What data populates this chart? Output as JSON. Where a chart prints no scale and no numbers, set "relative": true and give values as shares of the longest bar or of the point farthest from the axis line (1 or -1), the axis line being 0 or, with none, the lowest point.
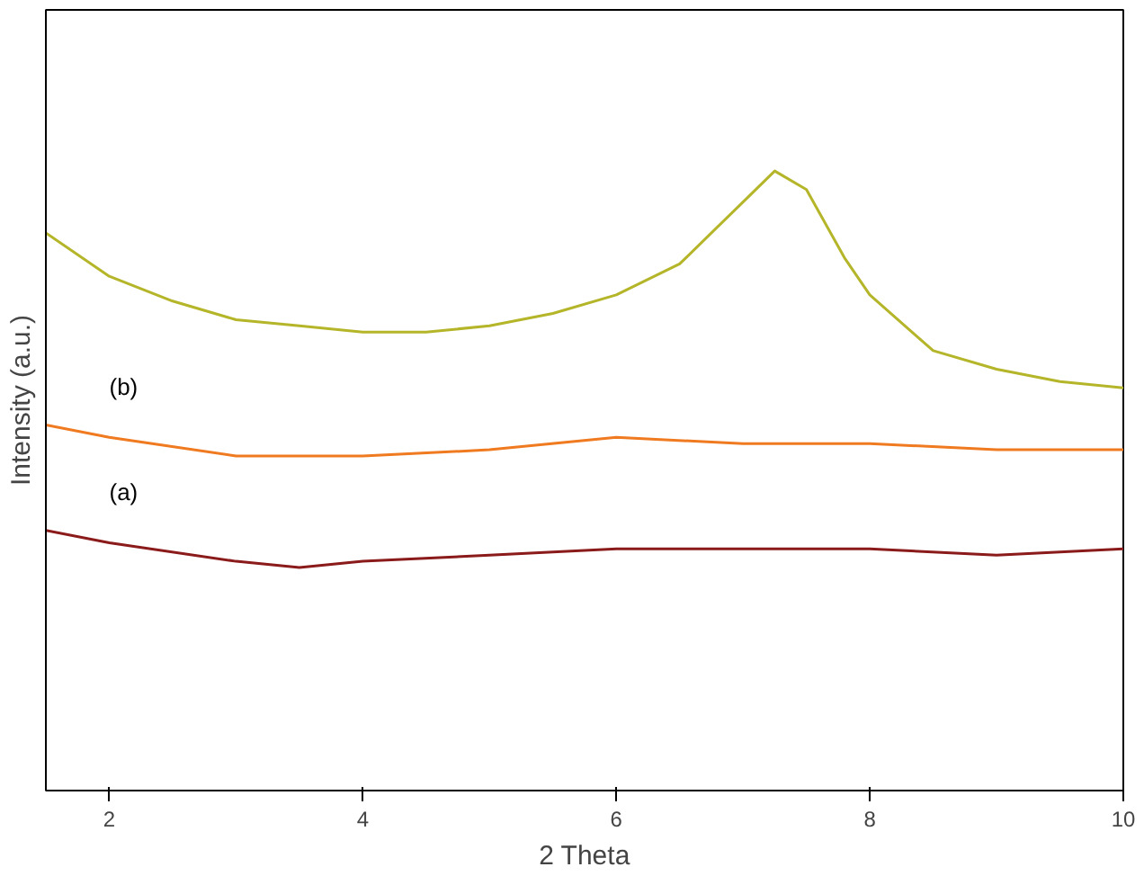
{
  "chart_data": {
    "type": "line",
    "xlabel": "2 Theta",
    "ylabel": "Intensity (a.u.)",
    "relative": true,
    "xlim": [
      1.5,
      10
    ],
    "xticks": [
      2,
      4,
      6,
      8,
      10
    ],
    "grid": false,
    "legend": false,
    "marker": "none",
    "line_style": "solid",
    "series": [
      {
        "color": "#b5b52a",
        "x": [
          1.5,
          2,
          2.5,
          3,
          3.5,
          4,
          4.5,
          5,
          5.5,
          6,
          6.5,
          7,
          7.25,
          7.5,
          7.8,
          8,
          8.5,
          9,
          9.5,
          10
        ],
        "values": [
          0.9,
          0.83,
          0.79,
          0.76,
          0.75,
          0.74,
          0.74,
          0.75,
          0.77,
          0.8,
          0.85,
          0.95,
          1,
          0.97,
          0.86,
          0.8,
          0.71,
          0.68,
          0.66,
          0.65
        ]
      },
      {
        "name": "(b)",
        "color": "#f07a20",
        "x": [
          1.5,
          2,
          3,
          4,
          5,
          6,
          7,
          8,
          9,
          10
        ],
        "values": [
          0.59,
          0.57,
          0.54,
          0.54,
          0.55,
          0.57,
          0.56,
          0.56,
          0.55,
          0.55
        ]
      },
      {
        "name": "(a)",
        "color": "#8b1a1a",
        "x": [
          1.5,
          2,
          3,
          3.5,
          4,
          5,
          6,
          7,
          8,
          9,
          10
        ],
        "values": [
          0.42,
          0.4,
          0.37,
          0.36,
          0.37,
          0.38,
          0.39,
          0.39,
          0.39,
          0.38,
          0.39
        ]
      }
    ]
  }
}
